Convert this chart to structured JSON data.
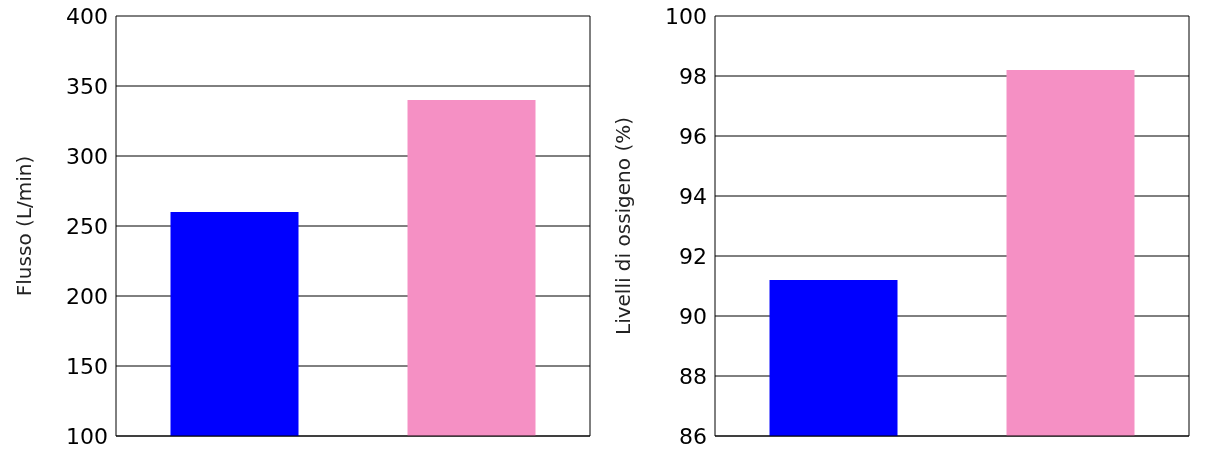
{
  "chart_data": [
    {
      "type": "bar",
      "ylabel": "Flusso (L/min)",
      "categories": [
        null,
        null
      ],
      "values": [
        260,
        340
      ],
      "colors": [
        "#0000ff",
        "#f590c4"
      ],
      "ylim": [
        100,
        400
      ],
      "yticks": [
        100,
        150,
        200,
        250,
        300,
        350,
        400
      ],
      "grid": "y"
    },
    {
      "type": "bar",
      "ylabel": "Livelli di ossigeno (%)",
      "categories": [
        null,
        null
      ],
      "values": [
        91.2,
        98.2
      ],
      "colors": [
        "#0000ff",
        "#f590c4"
      ],
      "ylim": [
        86,
        100
      ],
      "yticks": [
        86,
        88,
        90,
        92,
        94,
        96,
        98,
        100
      ],
      "grid": "y"
    }
  ]
}
